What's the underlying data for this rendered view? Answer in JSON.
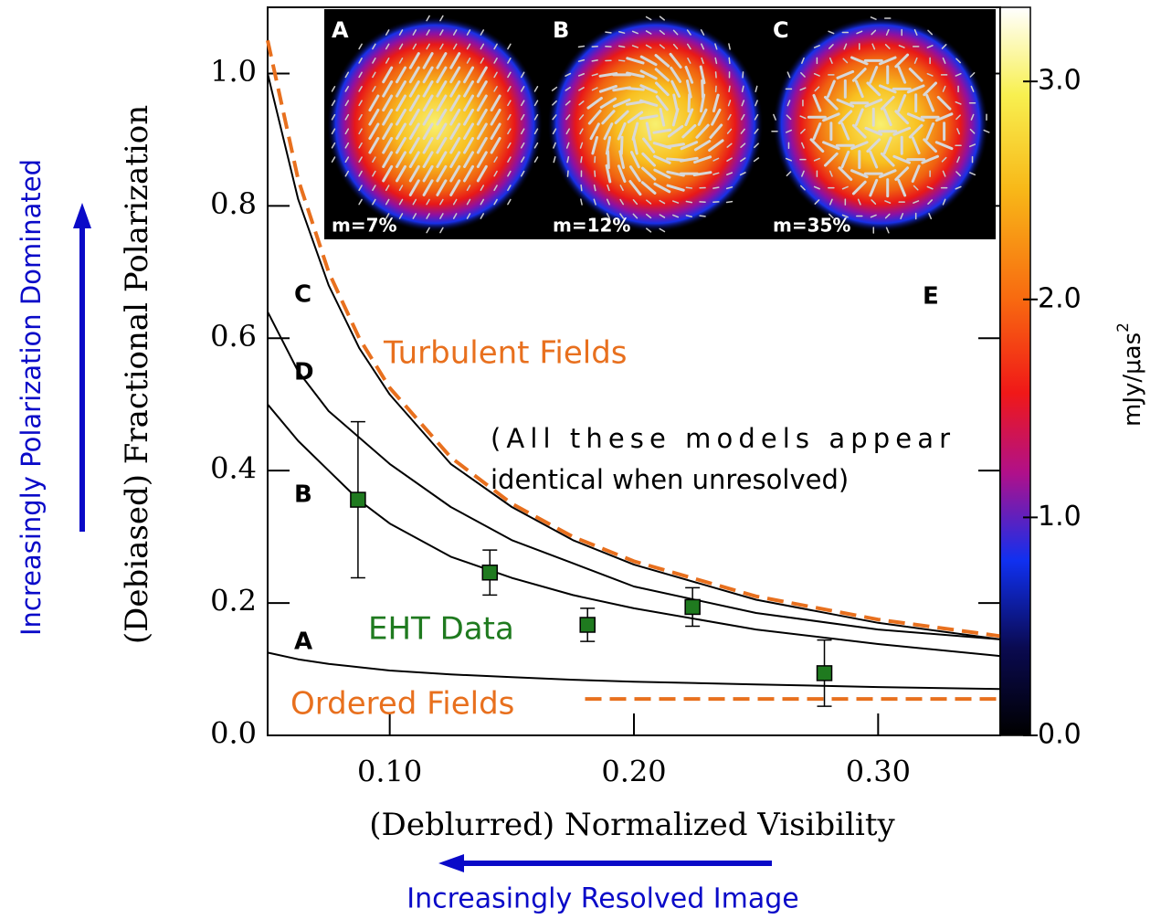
{
  "chart_data": {
    "type": "line",
    "x_label": "(Deblurred) Normalized Visibility",
    "y_label": "(Debiased) Fractional Polarization",
    "xlim": [
      0.05,
      0.35
    ],
    "xticks": [
      {
        "value": 0.1,
        "label": "0.10"
      },
      {
        "value": 0.2,
        "label": "0.20"
      },
      {
        "value": 0.3,
        "label": "0.30"
      }
    ],
    "ylim": [
      0,
      1.1
    ],
    "yticks": [
      {
        "value": 0,
        "label": "0.0"
      },
      {
        "value": 0.2,
        "label": "0.2"
      },
      {
        "value": 0.4,
        "label": "0.4"
      },
      {
        "value": 0.6,
        "label": "0.6"
      },
      {
        "value": 0.8,
        "label": "0.8"
      },
      {
        "value": 1,
        "label": "1.0"
      }
    ],
    "series": [
      {
        "name": "Turbulent Fields",
        "type": "line",
        "dashed": true,
        "color": "#e8701e",
        "x": [
          0.05,
          0.0625,
          0.075,
          0.0875,
          0.1,
          0.125,
          0.15,
          0.175,
          0.2,
          0.25,
          0.3,
          0.35
        ],
        "values": [
          1.05,
          0.84,
          0.7,
          0.6,
          0.525,
          0.42,
          0.35,
          0.3,
          0.263,
          0.21,
          0.175,
          0.15
        ]
      },
      {
        "name": "Ordered Fields",
        "type": "line",
        "dashed": true,
        "color": "#e8701e",
        "x": [
          0.18,
          0.35
        ],
        "values": [
          0.055,
          0.055
        ]
      },
      {
        "name": "C",
        "type": "line",
        "color": "#000000",
        "x": [
          0.05,
          0.0625,
          0.075,
          0.0875,
          0.1,
          0.125,
          0.15,
          0.175,
          0.2,
          0.25,
          0.3,
          0.35
        ],
        "values": [
          1.0,
          0.81,
          0.68,
          0.585,
          0.515,
          0.41,
          0.345,
          0.295,
          0.258,
          0.205,
          0.17,
          0.145
        ]
      },
      {
        "name": "D",
        "type": "line",
        "color": "#000000",
        "x": [
          0.05,
          0.0625,
          0.075,
          0.0875,
          0.1,
          0.125,
          0.15,
          0.175,
          0.2,
          0.25,
          0.3,
          0.35
        ],
        "values": [
          0.64,
          0.55,
          0.49,
          0.45,
          0.41,
          0.345,
          0.295,
          0.26,
          0.225,
          0.185,
          0.16,
          0.145
        ]
      },
      {
        "name": "B",
        "type": "line",
        "color": "#000000",
        "x": [
          0.05,
          0.0625,
          0.075,
          0.0875,
          0.1,
          0.125,
          0.15,
          0.175,
          0.2,
          0.25,
          0.3,
          0.35
        ],
        "values": [
          0.5,
          0.445,
          0.4,
          0.355,
          0.32,
          0.27,
          0.238,
          0.212,
          0.192,
          0.16,
          0.138,
          0.12
        ]
      },
      {
        "name": "A",
        "type": "line",
        "color": "#000000",
        "x": [
          0.05,
          0.0625,
          0.075,
          0.0875,
          0.1,
          0.125,
          0.15,
          0.175,
          0.2,
          0.25,
          0.3,
          0.35
        ],
        "values": [
          0.125,
          0.115,
          0.108,
          0.103,
          0.098,
          0.092,
          0.088,
          0.084,
          0.081,
          0.077,
          0.073,
          0.07
        ]
      },
      {
        "name": "EHT Data",
        "type": "scatter",
        "color": "#1f7a1f",
        "x": [
          0.087,
          0.141,
          0.181,
          0.224,
          0.278
        ],
        "values": [
          0.356,
          0.246,
          0.167,
          0.194,
          0.094
        ],
        "errors": [
          0.118,
          0.034,
          0.025,
          0.029,
          0.05
        ]
      }
    ],
    "annotations": [
      "(All these models appear",
      "identical when unresolved)",
      "E"
    ],
    "insets": [
      {
        "label": "A",
        "text": "m=7%"
      },
      {
        "label": "B",
        "text": "m=12%"
      },
      {
        "label": "C",
        "text": "m=35%"
      }
    ],
    "colorbar": {
      "label": "mJy/μas",
      "label_superscript": "2",
      "lim": [
        0,
        3.34
      ],
      "ticks": [
        {
          "value": 0,
          "label": "0.0"
        },
        {
          "value": 1,
          "label": "1.0"
        },
        {
          "value": 2,
          "label": "2.0"
        },
        {
          "value": 3,
          "label": "3.0"
        }
      ]
    },
    "side_notes": {
      "y": "Increasingly Polarization Dominated",
      "x": "Increasingly Resolved Image"
    }
  }
}
